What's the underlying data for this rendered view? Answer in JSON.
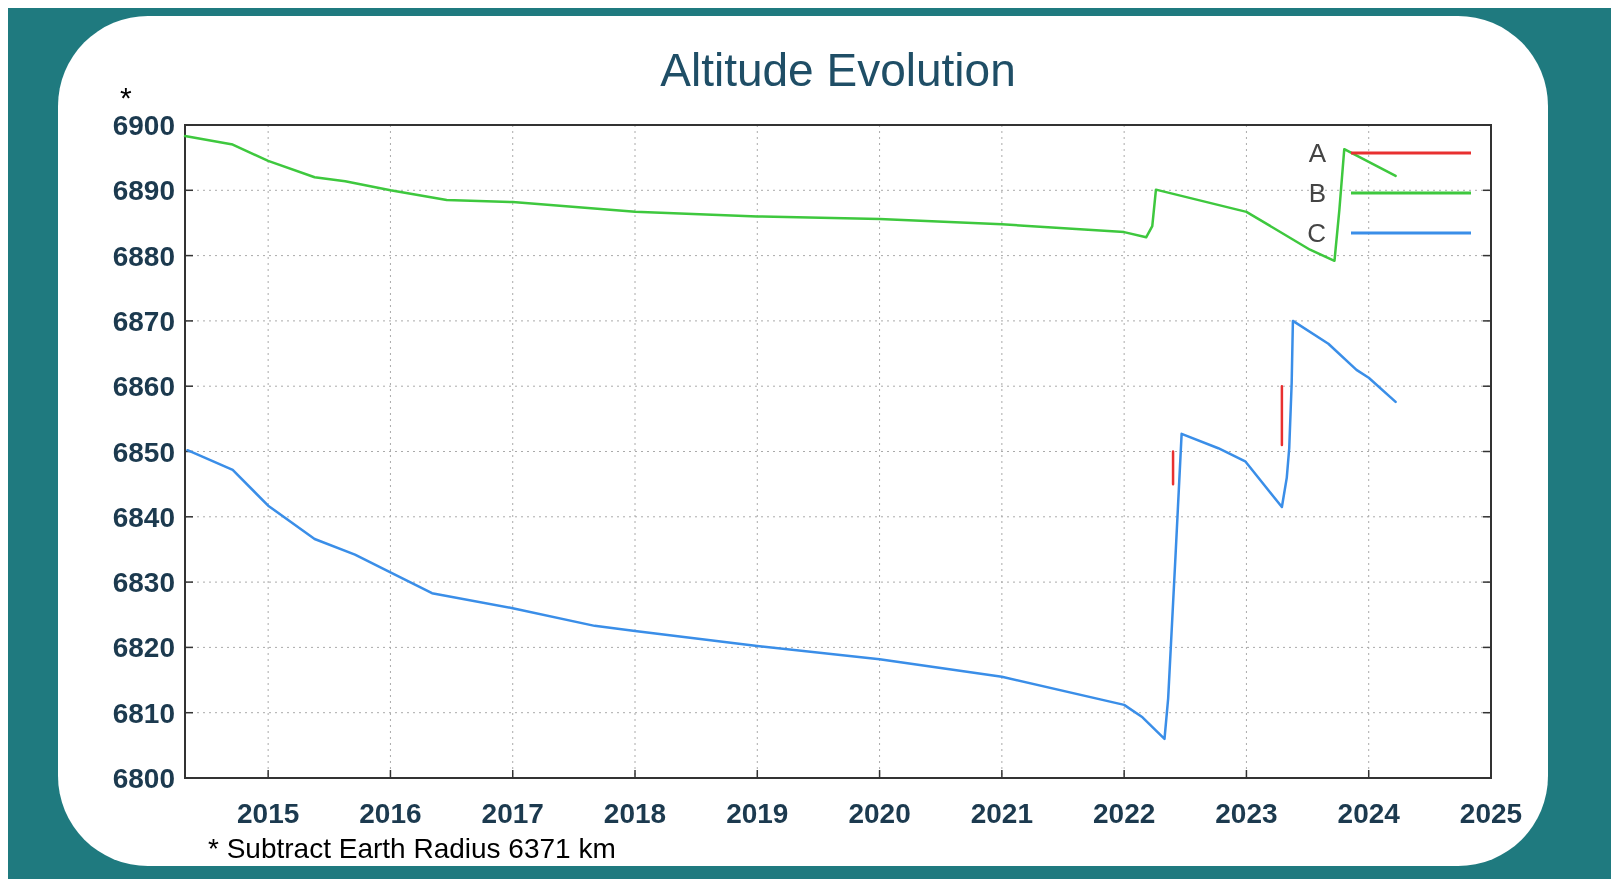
{
  "chart_data": {
    "type": "line",
    "title": "Altitude Evolution",
    "annotations": [
      "*",
      "* Subtract Earth Radius 6371 km"
    ],
    "xlim": [
      2014.32,
      2025
    ],
    "xticks": [
      2015,
      2016,
      2017,
      2018,
      2019,
      2020,
      2021,
      2022,
      2023,
      2024,
      2025
    ],
    "ylim": [
      6800,
      6900
    ],
    "yticks": [
      6800,
      6810,
      6820,
      6830,
      6840,
      6850,
      6860,
      6870,
      6880,
      6890,
      6900
    ],
    "grid": true,
    "legend": "top right",
    "line_style": "solid",
    "marker": "none",
    "series": [
      {
        "name": "B",
        "color": "#3ec83e",
        "x": [
          2014.32,
          2014.71,
          2015,
          2015.38,
          2015.63,
          2016,
          2016.46,
          2017,
          2018,
          2019,
          2020,
          2021,
          2022,
          2022.18,
          2022.23,
          2022.26,
          2023,
          2023.52,
          2023.72,
          2023.76,
          2023.8,
          2024.22
        ],
        "values": [
          6898.3,
          6897,
          6894.5,
          6892,
          6891.4,
          6890,
          6888.5,
          6888.2,
          6886.7,
          6886,
          6885.6,
          6884.8,
          6883.6,
          6882.8,
          6884.5,
          6890.1,
          6886.7,
          6880.9,
          6879.2,
          6887,
          6896.3,
          6892.2
        ]
      },
      {
        "name": "C",
        "color": "#3a8ee8",
        "x": [
          2014.34,
          2014.71,
          2015,
          2015.38,
          2015.71,
          2016,
          2016.34,
          2017,
          2017.67,
          2018,
          2019,
          2020,
          2021,
          2022,
          2022.15,
          2022.33,
          2022.36,
          2022.42,
          2022.47,
          2022.77,
          2022.99,
          2023.29,
          2023.33,
          2023.35,
          2023.37,
          2023.38,
          2023.67,
          2023.9,
          2024,
          2024.22
        ],
        "values": [
          6850.2,
          6847.2,
          6841.7,
          6836.6,
          6834.2,
          6831.5,
          6828.3,
          6826,
          6823.3,
          6822.5,
          6820.2,
          6818.2,
          6815.5,
          6811.2,
          6809.3,
          6806,
          6812.2,
          6834,
          6852.7,
          6850.5,
          6848.5,
          6841.5,
          6846,
          6850.5,
          6860.5,
          6870,
          6866.5,
          6862.5,
          6861.3,
          6857.6
        ]
      },
      {
        "name": "A",
        "color": "#e83030",
        "x": [
          2022.4,
          2022.4,
          null,
          2023.29,
          2023.29
        ],
        "values": [
          6845,
          6850,
          null,
          6851,
          6860
        ]
      }
    ]
  }
}
